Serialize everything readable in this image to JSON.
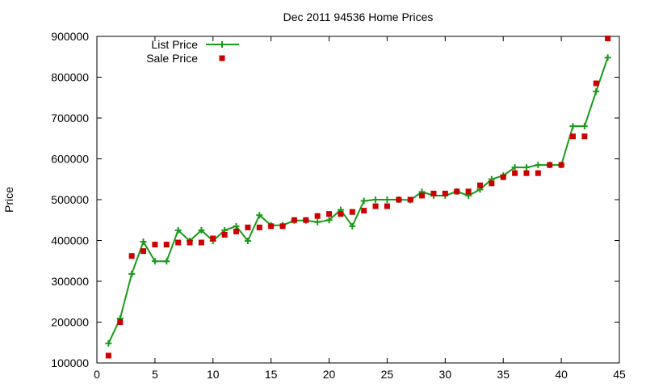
{
  "chart_data": {
    "type": "line",
    "title": "Dec 2011 94536 Home Prices",
    "xlabel": "",
    "ylabel": "Price",
    "xlim": [
      0,
      45
    ],
    "ylim": [
      100000,
      900000
    ],
    "x_ticks": [
      0,
      5,
      10,
      15,
      20,
      25,
      30,
      35,
      40,
      45
    ],
    "y_ticks": [
      100000,
      200000,
      300000,
      400000,
      500000,
      600000,
      700000,
      800000,
      900000
    ],
    "legend_position": "top-left",
    "grid": false,
    "series": [
      {
        "name": "List Price",
        "style": "line-with-plus-markers",
        "color": "#1a9a1a",
        "x": [
          1,
          2,
          3,
          4,
          5,
          6,
          7,
          8,
          9,
          10,
          11,
          12,
          13,
          14,
          15,
          16,
          17,
          18,
          19,
          20,
          21,
          22,
          23,
          24,
          25,
          26,
          27,
          28,
          29,
          30,
          31,
          32,
          33,
          34,
          35,
          36,
          37,
          38,
          39,
          40,
          41,
          42,
          43,
          44
        ],
        "values": [
          148000,
          209000,
          318000,
          397000,
          349000,
          349000,
          425000,
          399000,
          425000,
          399000,
          425000,
          435000,
          399000,
          462000,
          437000,
          437000,
          449000,
          449000,
          445000,
          450000,
          475000,
          435000,
          497000,
          500000,
          500000,
          500000,
          499000,
          519000,
          510000,
          510000,
          520000,
          510000,
          525000,
          550000,
          559000,
          579000,
          579000,
          585000,
          585000,
          585000,
          680000,
          680000,
          765000,
          848000
        ]
      },
      {
        "name": "Sale Price",
        "style": "square-markers",
        "color": "#cc0000",
        "x": [
          1,
          2,
          3,
          4,
          5,
          6,
          7,
          8,
          9,
          10,
          11,
          12,
          13,
          14,
          15,
          16,
          17,
          18,
          19,
          20,
          21,
          22,
          23,
          24,
          25,
          26,
          27,
          28,
          29,
          30,
          31,
          32,
          33,
          34,
          35,
          36,
          37,
          38,
          39,
          40,
          41,
          42,
          43,
          44
        ],
        "values": [
          118000,
          200000,
          362000,
          374000,
          390000,
          390000,
          395000,
          395000,
          395000,
          405000,
          414000,
          422000,
          432000,
          432000,
          435000,
          435000,
          450000,
          450000,
          460000,
          465000,
          465000,
          470000,
          473000,
          484000,
          484000,
          500000,
          500000,
          510000,
          515000,
          515000,
          520000,
          520000,
          535000,
          540000,
          555000,
          565000,
          565000,
          565000,
          585000,
          585000,
          655000,
          655000,
          785000,
          895000
        ]
      }
    ]
  }
}
